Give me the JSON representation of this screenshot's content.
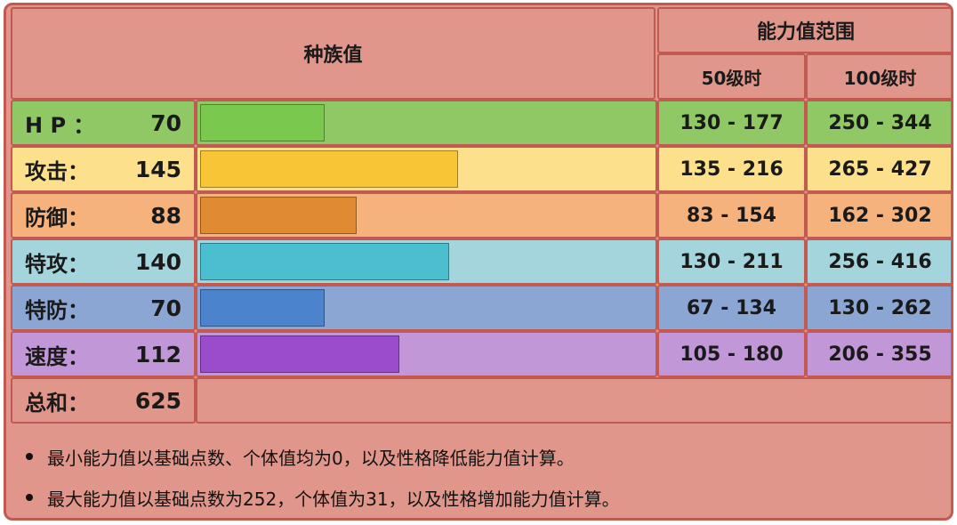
{
  "header": {
    "base_stats_title": "种族值",
    "stat_range_title": "能力值范围",
    "level50_label": "50级时",
    "level100_label": "100级时"
  },
  "stats": [
    {
      "label": "H P ：",
      "value": "70",
      "base": 70,
      "range50": "130 - 177",
      "range100": "250 - 344",
      "row_color": "#8fc865",
      "bar_color": "#7bc84e"
    },
    {
      "label": "攻击：",
      "value": "145",
      "base": 145,
      "range50": "135 - 216",
      "range100": "265 - 427",
      "row_color": "#fde08c",
      "bar_color": "#f7c535"
    },
    {
      "label": "防御：",
      "value": "88",
      "base": 88,
      "range50": "83 - 154",
      "range100": "162 - 302",
      "row_color": "#f6b27c",
      "bar_color": "#e08a32"
    },
    {
      "label": "特攻：",
      "value": "140",
      "base": 140,
      "range50": "130 - 211",
      "range100": "256 - 416",
      "row_color": "#a4d5dc",
      "bar_color": "#4bbfd0"
    },
    {
      "label": "特防：",
      "value": "70",
      "base": 70,
      "range50": "67 - 134",
      "range100": "130 - 262",
      "row_color": "#8ba6d2",
      "bar_color": "#4b84cc"
    },
    {
      "label": "速度：",
      "value": "112",
      "base": 112,
      "range50": "105 - 180",
      "range100": "206 - 355",
      "row_color": "#c197d8",
      "bar_color": "#9a4ccc"
    }
  ],
  "total": {
    "label": "总和：",
    "value": "625"
  },
  "notes": [
    "最小能力值以基础点数、个体值均为0，以及性格降低能力值计算。",
    "最大能力值以基础点数为252，个体值为31，以及性格增加能力值计算。"
  ]
}
